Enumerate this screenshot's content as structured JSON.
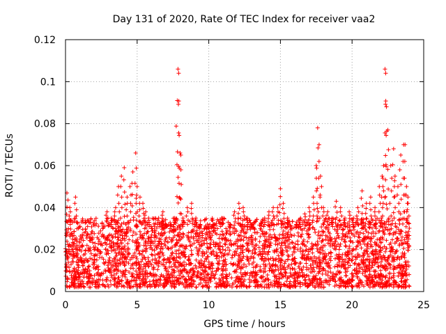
{
  "chart_data": {
    "type": "scatter",
    "title": "Day 131 of 2020, Rate Of TEC Index for receiver vaa2",
    "xlabel": "GPS time / hours",
    "ylabel": "ROTI / TECUs",
    "xlim": [
      0,
      25
    ],
    "ylim": [
      0,
      0.12
    ],
    "x_ticks": [
      0,
      5,
      10,
      15,
      20,
      25
    ],
    "x_tick_labels": [
      "0",
      "5",
      "10",
      "15",
      "20",
      "25"
    ],
    "y_ticks": [
      0,
      0.02,
      0.04,
      0.06,
      0.08,
      0.1,
      0.12
    ],
    "y_tick_labels": [
      "0",
      "0.02",
      "0.04",
      "0.06",
      "0.08",
      "0.1",
      "0.12"
    ],
    "grid": true,
    "marker": "+",
    "color": "#ff0000",
    "series": [
      {
        "name": "ROTI",
        "x": [
          0.1,
          0.2,
          0.3,
          0.5,
          0.7,
          1.0,
          1.3,
          1.5,
          1.8,
          2.0,
          2.3,
          2.6,
          2.9,
          3.2,
          3.5,
          3.7,
          3.9,
          4.1,
          4.3,
          4.5,
          4.7,
          4.9,
          5.0,
          5.2,
          5.4,
          5.6,
          5.8,
          6.0,
          6.2,
          6.5,
          6.8,
          7.0,
          7.3,
          7.6,
          7.8,
          7.85,
          7.9,
          8.0,
          8.05,
          8.2,
          8.5,
          8.8,
          9.1,
          9.4,
          9.7,
          10.0,
          10.3,
          10.6,
          10.9,
          11.2,
          11.5,
          11.8,
          12.1,
          12.4,
          12.7,
          13.0,
          13.3,
          13.6,
          13.9,
          14.2,
          14.5,
          14.8,
          15.0,
          15.2,
          15.5,
          15.8,
          16.1,
          16.4,
          16.7,
          17.0,
          17.3,
          17.5,
          17.6,
          17.7,
          17.8,
          18.0,
          18.3,
          18.6,
          18.9,
          19.2,
          19.5,
          19.8,
          20.1,
          20.4,
          20.7,
          21.0,
          21.3,
          21.6,
          21.9,
          22.1,
          22.2,
          22.3,
          22.35,
          22.4,
          22.5,
          22.7,
          22.9,
          23.0,
          23.2,
          23.4,
          23.6,
          23.7,
          23.8,
          23.9
        ],
        "y": [
          0.047,
          0.03,
          0.04,
          0.025,
          0.045,
          0.02,
          0.028,
          0.022,
          0.018,
          0.02,
          0.025,
          0.03,
          0.038,
          0.035,
          0.04,
          0.05,
          0.055,
          0.059,
          0.045,
          0.05,
          0.057,
          0.066,
          0.05,
          0.045,
          0.042,
          0.038,
          0.035,
          0.03,
          0.028,
          0.035,
          0.038,
          0.032,
          0.03,
          0.035,
          0.091,
          0.106,
          0.104,
          0.066,
          0.065,
          0.035,
          0.04,
          0.042,
          0.035,
          0.032,
          0.03,
          0.03,
          0.032,
          0.03,
          0.035,
          0.03,
          0.032,
          0.038,
          0.042,
          0.04,
          0.035,
          0.032,
          0.028,
          0.03,
          0.035,
          0.038,
          0.04,
          0.04,
          0.049,
          0.042,
          0.035,
          0.03,
          0.032,
          0.035,
          0.037,
          0.04,
          0.045,
          0.06,
          0.078,
          0.07,
          0.055,
          0.04,
          0.038,
          0.035,
          0.043,
          0.04,
          0.035,
          0.038,
          0.035,
          0.04,
          0.048,
          0.042,
          0.045,
          0.04,
          0.05,
          0.055,
          0.06,
          0.106,
          0.104,
          0.088,
          0.077,
          0.06,
          0.068,
          0.055,
          0.05,
          0.065,
          0.07,
          0.07,
          0.05,
          0.045
        ]
      }
    ],
    "dense_band": {
      "x_range": [
        0,
        24
      ],
      "y_range": [
        0.002,
        0.035
      ],
      "description": "thousands of overlapping points"
    }
  }
}
